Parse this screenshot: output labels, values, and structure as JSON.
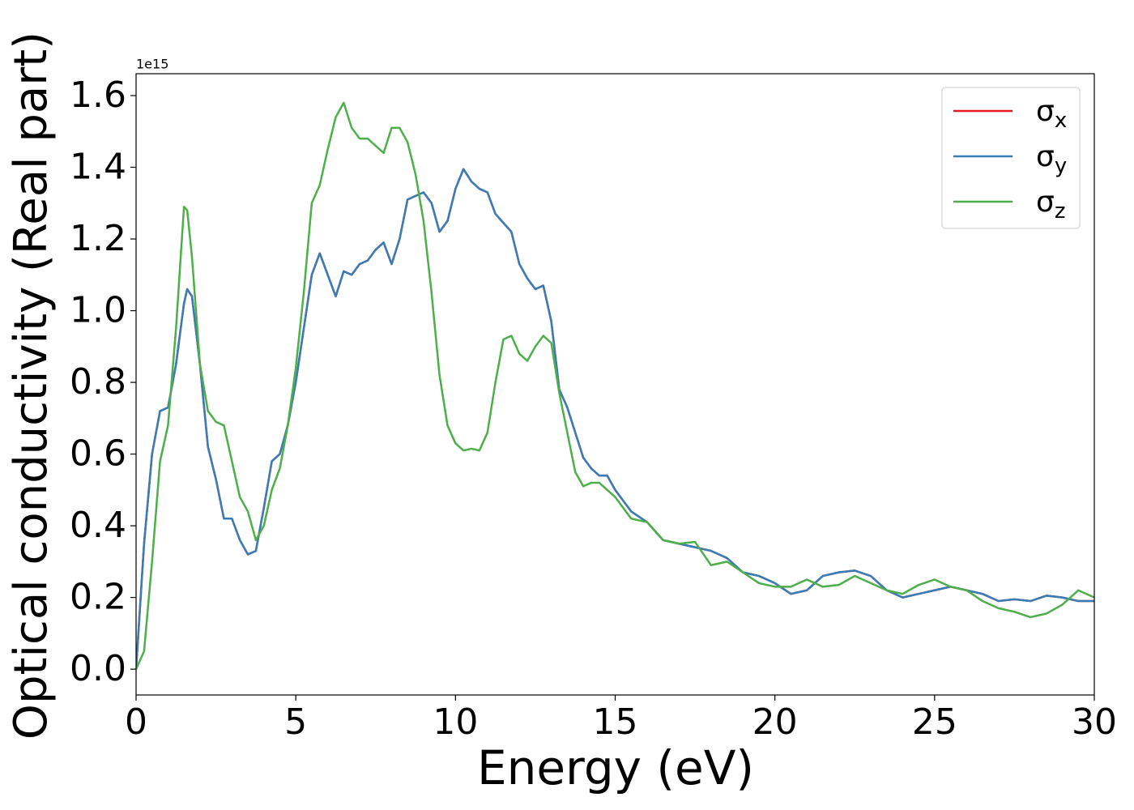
{
  "chart_data": {
    "type": "line",
    "xlabel": "Energy (eV)",
    "ylabel": "Optical conductivity (Real part)",
    "y_offset_label": "1e15",
    "x": [
      0,
      0.25,
      0.5,
      0.75,
      1,
      1.25,
      1.5,
      1.6,
      1.75,
      2,
      2.25,
      2.5,
      2.75,
      3,
      3.25,
      3.5,
      3.75,
      4,
      4.25,
      4.5,
      4.75,
      5,
      5.25,
      5.5,
      5.75,
      6,
      6.25,
      6.5,
      6.75,
      7,
      7.25,
      7.5,
      7.75,
      8,
      8.25,
      8.5,
      8.75,
      9,
      9.25,
      9.5,
      9.75,
      10,
      10.25,
      10.5,
      10.75,
      11,
      11.25,
      11.5,
      11.75,
      12,
      12.25,
      12.5,
      12.75,
      13,
      13.25,
      13.5,
      13.75,
      14,
      14.25,
      14.5,
      14.75,
      15,
      15.5,
      16,
      16.5,
      17,
      17.5,
      18,
      18.5,
      19,
      19.5,
      20,
      20.5,
      21,
      21.5,
      22,
      22.5,
      23,
      23.5,
      24,
      24.5,
      25,
      25.5,
      26,
      26.5,
      27,
      27.5,
      28,
      28.5,
      29,
      29.5,
      30
    ],
    "series": [
      {
        "name": "σx",
        "color": "#e41a1c",
        "values": [
          0,
          0.35,
          0.6,
          0.72,
          0.73,
          0.85,
          1.02,
          1.06,
          1.04,
          0.85,
          0.62,
          0.53,
          0.42,
          0.42,
          0.36,
          0.32,
          0.33,
          0.45,
          0.58,
          0.6,
          0.68,
          0.8,
          0.95,
          1.1,
          1.16,
          1.1,
          1.04,
          1.11,
          1.1,
          1.13,
          1.14,
          1.17,
          1.19,
          1.13,
          1.2,
          1.31,
          1.32,
          1.33,
          1.3,
          1.22,
          1.25,
          1.34,
          1.395,
          1.36,
          1.34,
          1.33,
          1.27,
          1.245,
          1.22,
          1.13,
          1.09,
          1.06,
          1.07,
          0.97,
          0.78,
          0.73,
          0.66,
          0.59,
          0.56,
          0.54,
          0.54,
          0.5,
          0.44,
          0.41,
          0.36,
          0.35,
          0.34,
          0.33,
          0.31,
          0.27,
          0.26,
          0.24,
          0.21,
          0.22,
          0.26,
          0.27,
          0.275,
          0.26,
          0.22,
          0.2,
          0.21,
          0.22,
          0.23,
          0.22,
          0.21,
          0.19,
          0.195,
          0.19,
          0.205,
          0.2,
          0.19,
          0.19
        ]
      },
      {
        "name": "σy",
        "color": "#377eb8",
        "values": [
          0,
          0.35,
          0.6,
          0.72,
          0.73,
          0.85,
          1.02,
          1.06,
          1.04,
          0.85,
          0.62,
          0.53,
          0.42,
          0.42,
          0.36,
          0.32,
          0.33,
          0.45,
          0.58,
          0.6,
          0.68,
          0.8,
          0.95,
          1.1,
          1.16,
          1.1,
          1.04,
          1.11,
          1.1,
          1.13,
          1.14,
          1.17,
          1.19,
          1.13,
          1.2,
          1.31,
          1.32,
          1.33,
          1.3,
          1.22,
          1.25,
          1.34,
          1.395,
          1.36,
          1.34,
          1.33,
          1.27,
          1.245,
          1.22,
          1.13,
          1.09,
          1.06,
          1.07,
          0.97,
          0.78,
          0.73,
          0.66,
          0.59,
          0.56,
          0.54,
          0.54,
          0.5,
          0.44,
          0.41,
          0.36,
          0.35,
          0.34,
          0.33,
          0.31,
          0.27,
          0.26,
          0.24,
          0.21,
          0.22,
          0.26,
          0.27,
          0.275,
          0.26,
          0.22,
          0.2,
          0.21,
          0.22,
          0.23,
          0.22,
          0.21,
          0.19,
          0.195,
          0.19,
          0.205,
          0.2,
          0.19,
          0.19
        ]
      },
      {
        "name": "σz",
        "color": "#4daf4a",
        "values": [
          0,
          0.05,
          0.3,
          0.58,
          0.68,
          0.95,
          1.29,
          1.28,
          1.15,
          0.85,
          0.72,
          0.69,
          0.68,
          0.58,
          0.48,
          0.44,
          0.36,
          0.4,
          0.5,
          0.56,
          0.68,
          0.84,
          1.05,
          1.3,
          1.35,
          1.45,
          1.54,
          1.58,
          1.51,
          1.48,
          1.48,
          1.46,
          1.44,
          1.51,
          1.51,
          1.47,
          1.38,
          1.25,
          1.05,
          0.82,
          0.68,
          0.63,
          0.61,
          0.615,
          0.61,
          0.66,
          0.8,
          0.92,
          0.93,
          0.88,
          0.86,
          0.9,
          0.93,
          0.91,
          0.77,
          0.66,
          0.55,
          0.51,
          0.52,
          0.52,
          0.5,
          0.48,
          0.42,
          0.41,
          0.36,
          0.35,
          0.355,
          0.29,
          0.3,
          0.27,
          0.24,
          0.23,
          0.23,
          0.25,
          0.23,
          0.235,
          0.26,
          0.24,
          0.22,
          0.21,
          0.235,
          0.25,
          0.23,
          0.22,
          0.19,
          0.17,
          0.16,
          0.145,
          0.155,
          0.18,
          0.22,
          0.2
        ]
      }
    ],
    "xlim": [
      0,
      30
    ],
    "xticks": [
      0,
      5,
      10,
      15,
      20,
      25,
      30
    ],
    "ylim": [
      -0.072,
      1.661
    ],
    "yticks": [
      {
        "value": 0,
        "label": "0.0"
      },
      0.2,
      0.4,
      0.6,
      0.8,
      {
        "value": 1,
        "label": "1.0"
      },
      1.2,
      1.4,
      1.6
    ],
    "legend": "upper right"
  }
}
